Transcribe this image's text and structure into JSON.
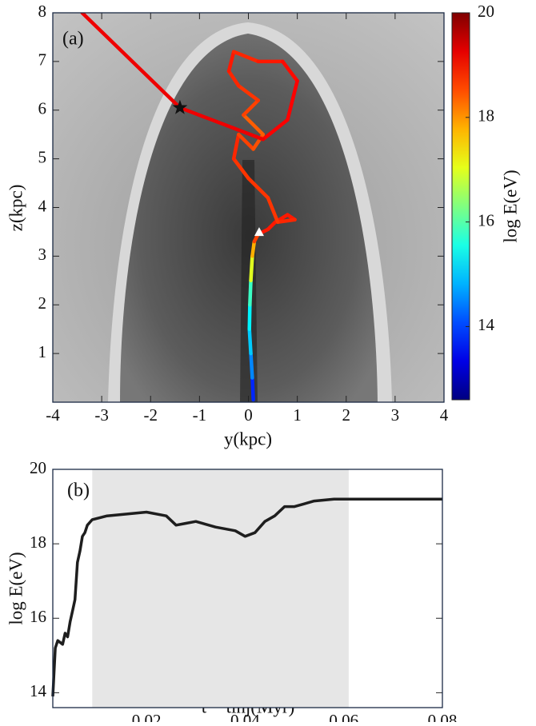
{
  "chart_data": [
    {
      "type": "trajectory",
      "annotation": "(a)",
      "xlabel": "y(kpc)",
      "ylabel": "z(kpc)",
      "colorbar_label": "log E(eV)",
      "x": [
        0.1,
        0.08,
        0.05,
        0.02,
        0.03,
        0.05,
        0.08,
        0.12,
        0.2,
        0.4,
        0.55,
        0.8,
        0.95,
        0.6,
        0.4,
        0.0,
        -0.3,
        -0.2,
        0.1,
        0.3,
        -0.1,
        0.2,
        -0.2,
        -0.4,
        -0.3,
        0.2,
        0.7,
        1.0,
        0.8,
        0.3,
        -1.4,
        -3.4
      ],
      "y": [
        0.05,
        0.5,
        1.0,
        1.5,
        2.0,
        2.5,
        3.0,
        3.3,
        3.45,
        3.55,
        3.7,
        3.85,
        3.75,
        3.7,
        4.2,
        4.6,
        5.0,
        5.5,
        5.2,
        5.5,
        5.9,
        6.2,
        6.5,
        6.8,
        7.2,
        7.0,
        7.0,
        6.6,
        5.8,
        5.4,
        6.05,
        8.0
      ],
      "energy": [
        12.8,
        13.8,
        14.5,
        15.0,
        15.3,
        15.8,
        17.0,
        17.8,
        18.6,
        18.9,
        18.9,
        18.9,
        18.9,
        18.8,
        18.7,
        18.7,
        18.7,
        18.8,
        18.6,
        18.5,
        18.4,
        18.6,
        18.7,
        18.8,
        18.9,
        18.8,
        18.9,
        19.0,
        19.1,
        19.1,
        19.2,
        19.2
      ],
      "markers": [
        {
          "x": -1.4,
          "y": 6.05
        },
        {
          "x": 0.22,
          "y": 3.48
        }
      ],
      "xlim": [
        -4,
        4
      ],
      "ylim": [
        0,
        8
      ],
      "xticks": [
        -4,
        -3,
        -2,
        -1,
        0,
        1,
        2,
        3,
        4
      ],
      "yticks": [
        1,
        2,
        3,
        4,
        5,
        6,
        7,
        8
      ],
      "clim": [
        12.6,
        20
      ],
      "cticks": [
        14,
        16,
        18,
        20
      ]
    },
    {
      "type": "line",
      "annotation": "(b)",
      "xlabel": "t − tinj(Myr)",
      "ylabel": "log E(eV)",
      "color": "#1e1e1e",
      "x": [
        0.001,
        0.0015,
        0.002,
        0.003,
        0.0035,
        0.004,
        0.0045,
        0.005,
        0.0055,
        0.006,
        0.0065,
        0.007,
        0.0075,
        0.008,
        0.009,
        0.012,
        0.016,
        0.02,
        0.024,
        0.026,
        0.028,
        0.03,
        0.034,
        0.038,
        0.04,
        0.042,
        0.044,
        0.046,
        0.048,
        0.05,
        0.054,
        0.058,
        0.0605,
        0.07,
        0.08
      ],
      "values": [
        13.9,
        15.2,
        15.4,
        15.3,
        15.6,
        15.5,
        15.9,
        16.2,
        16.5,
        17.5,
        17.8,
        18.2,
        18.3,
        18.5,
        18.65,
        18.75,
        18.8,
        18.85,
        18.75,
        18.5,
        18.55,
        18.6,
        18.45,
        18.35,
        18.2,
        18.3,
        18.6,
        18.75,
        19.0,
        19.0,
        19.15,
        19.2,
        19.2,
        19.2,
        19.2
      ],
      "shaded": [
        0.009,
        0.061
      ],
      "xlim": [
        0.001,
        0.08
      ],
      "ylim": [
        13.6,
        20
      ],
      "xticks": [
        0.02,
        0.04,
        0.06,
        0.08
      ],
      "yticks": [
        14,
        16,
        18,
        20
      ]
    }
  ]
}
